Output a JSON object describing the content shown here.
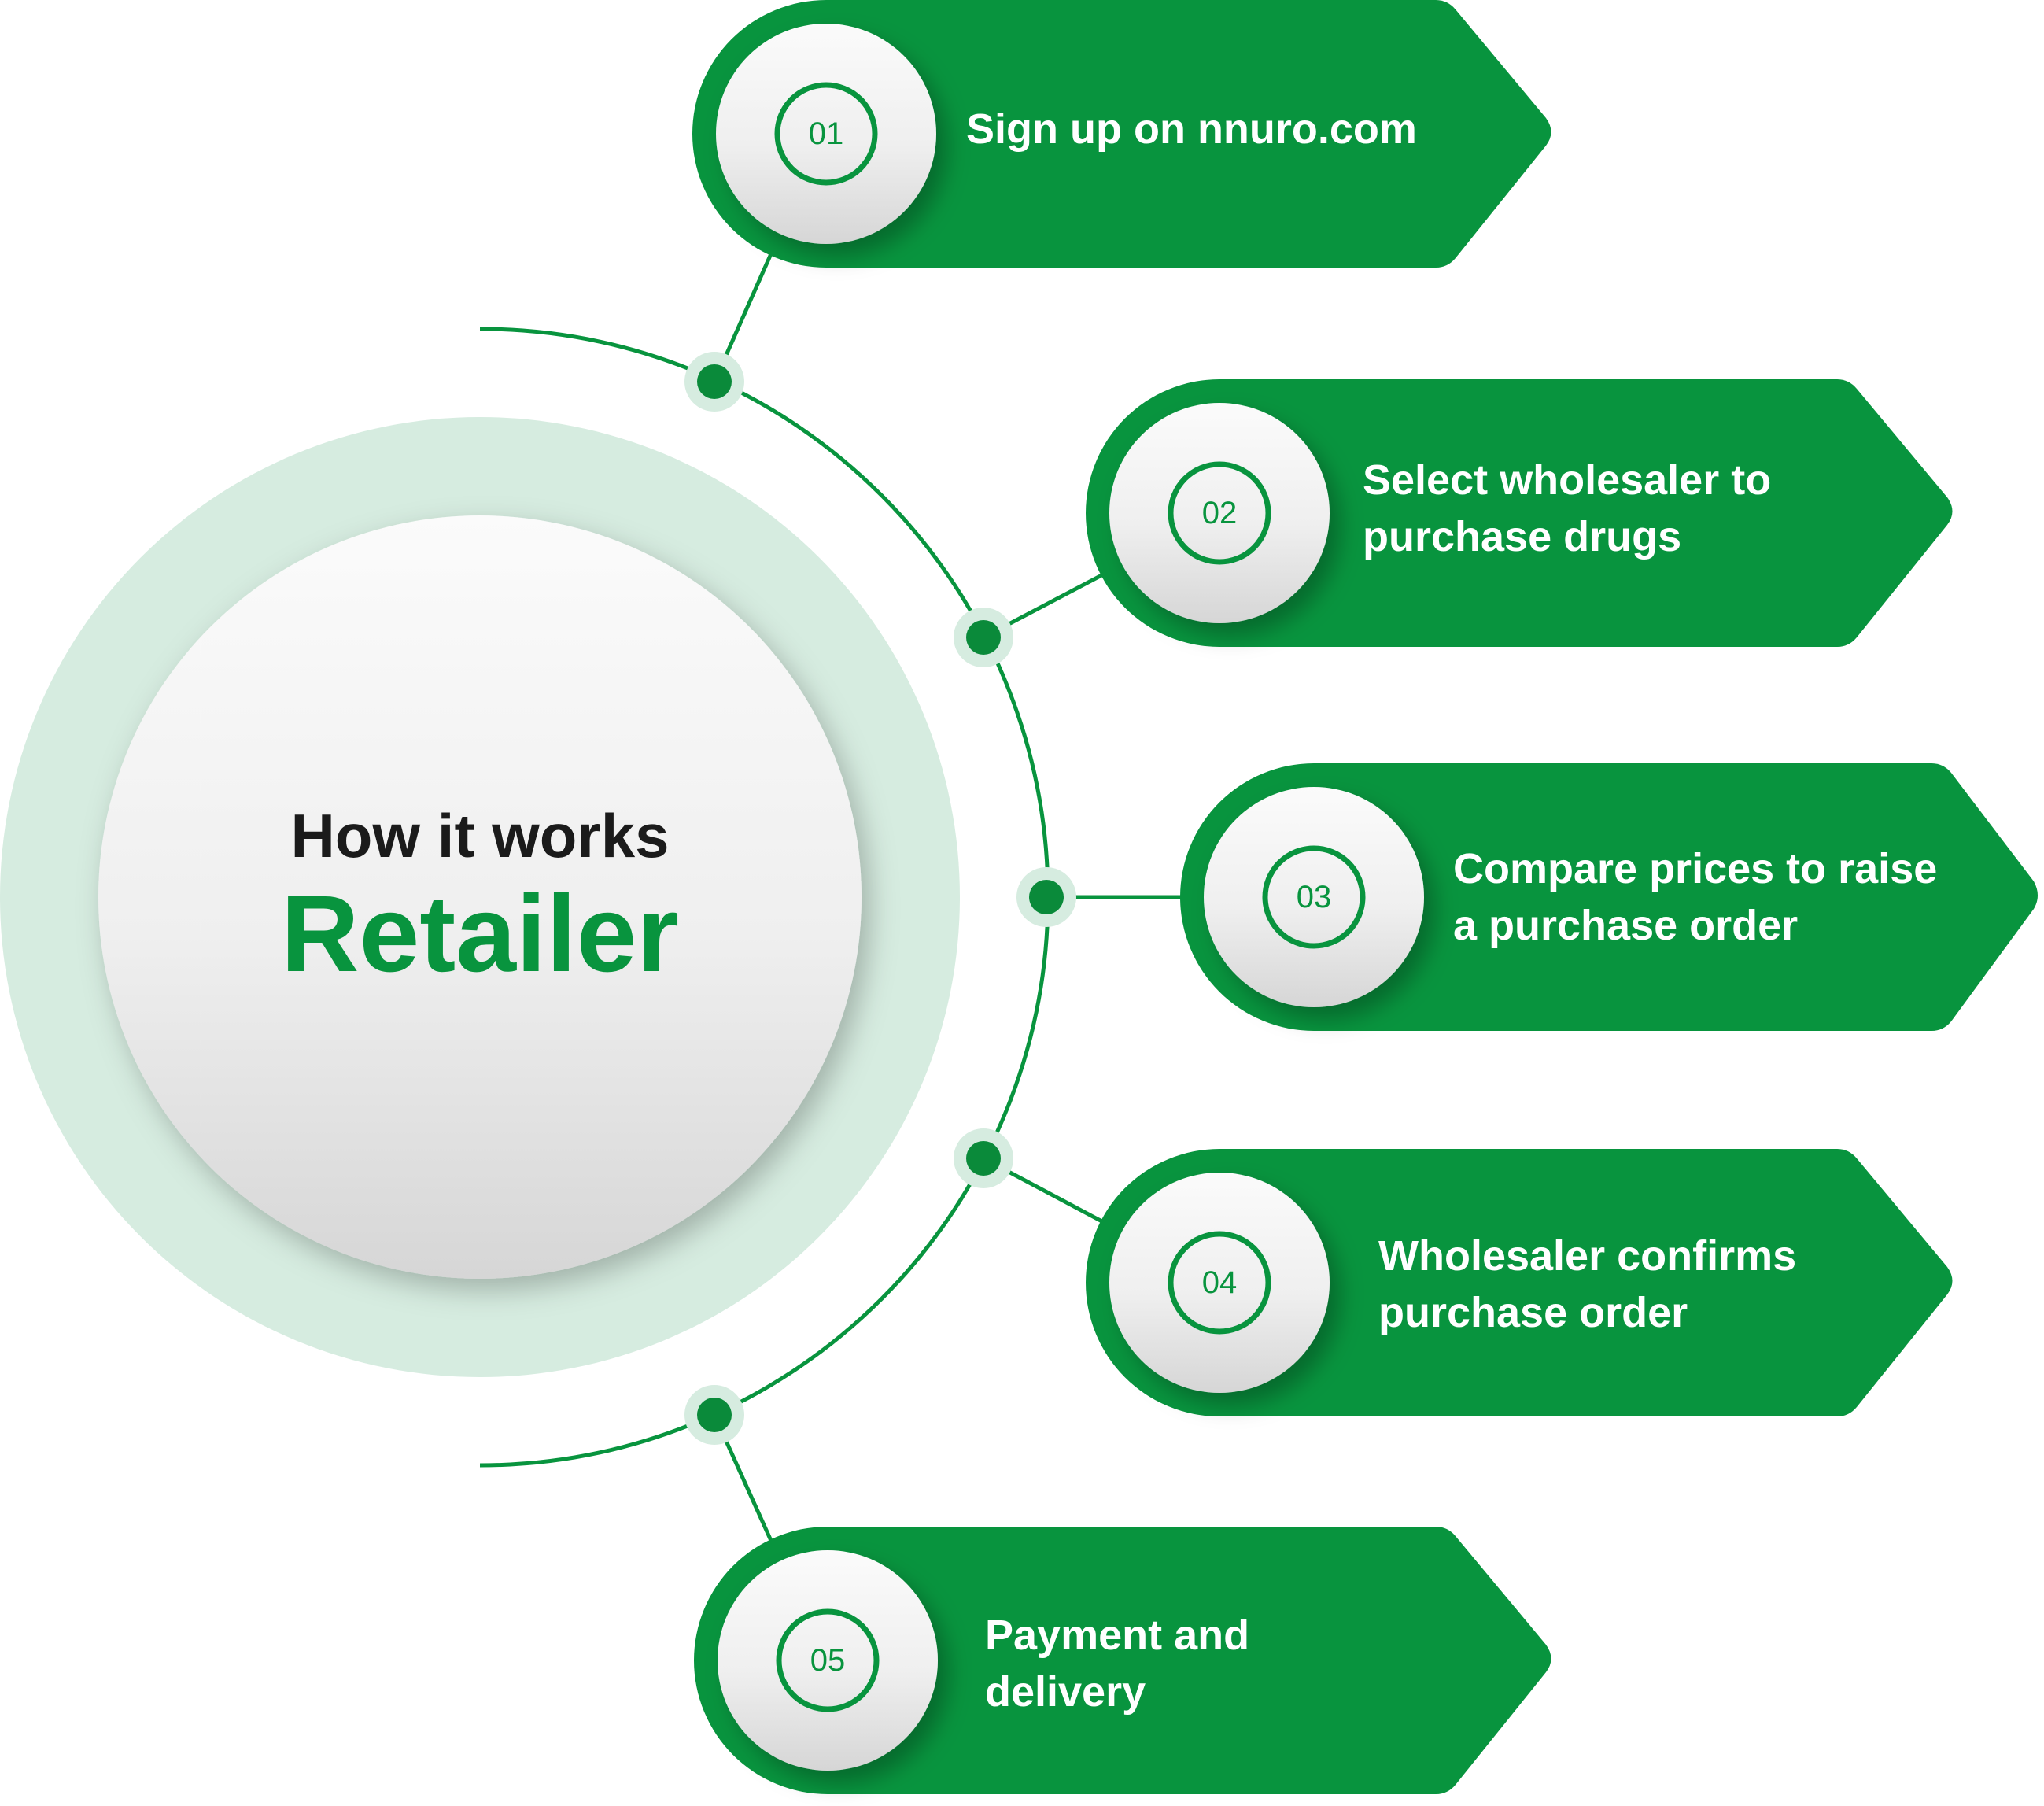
{
  "colors": {
    "brand_green": "#08943e",
    "halo_green": "#d6ece0",
    "connector_dot": "#0a8a3a",
    "disc_light": "#fafafa",
    "disc_shade": "#d9d9d9",
    "heading_text": "#1b1b1b",
    "label_text": "#ffffff"
  },
  "title": {
    "kicker": "How it works",
    "main": "Retailer"
  },
  "steps": [
    {
      "number": "01",
      "label": "Sign up on nnuro.com"
    },
    {
      "number": "02",
      "label": "Select wholesaler to\npurchase drugs"
    },
    {
      "number": "03",
      "label": "Compare prices to raise\na purchase order"
    },
    {
      "number": "04",
      "label": "Wholesaler confirms\npurchase order"
    },
    {
      "number": "05",
      "label": "Payment and\ndelivery"
    }
  ]
}
